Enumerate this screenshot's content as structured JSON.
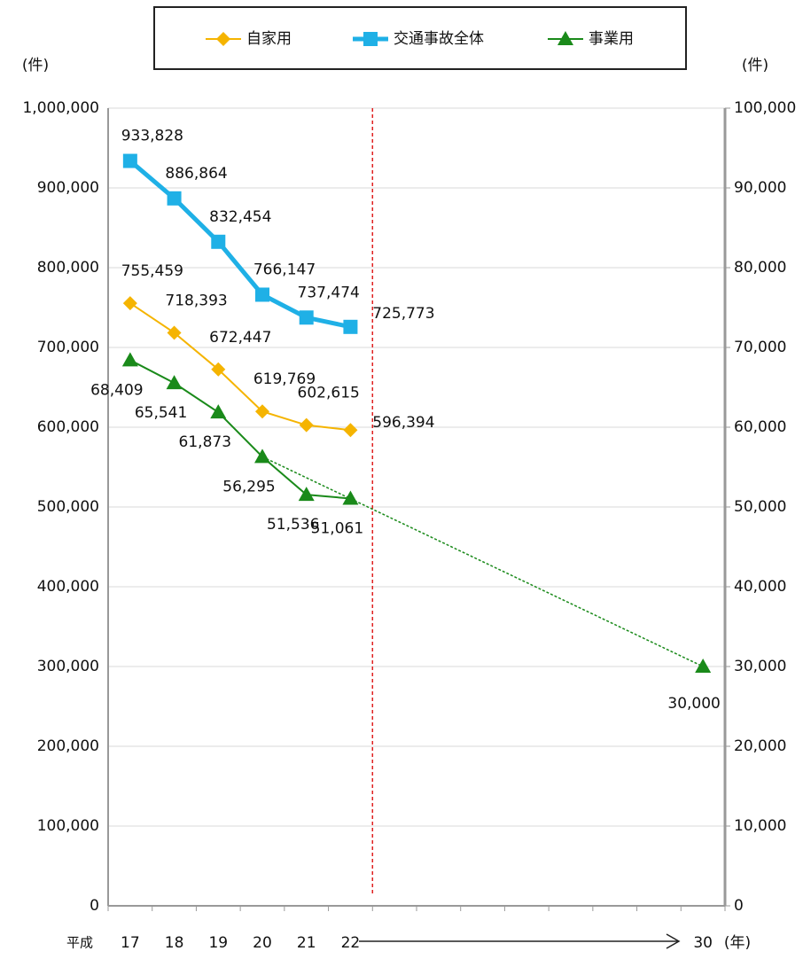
{
  "chart_data": {
    "type": "line",
    "legend_labels_note_free": null,
    "categories": [
      "17",
      "18",
      "19",
      "20",
      "21",
      "22",
      null,
      null,
      null,
      null,
      null,
      null,
      null,
      "30"
    ],
    "x_prefix": "平成",
    "x_unit": "(年)",
    "y_unit": "(件)",
    "y2_unit": "(件)",
    "ylim": [
      0,
      1000000
    ],
    "yticks": [
      0,
      {
        "value": 100000,
        "label": "100,000"
      },
      {
        "value": 200000,
        "label": "200,000"
      },
      {
        "value": 300000,
        "label": "300,000"
      },
      {
        "value": 400000,
        "label": "400,000"
      },
      {
        "value": 500000,
        "label": "500,000"
      },
      {
        "value": 600000,
        "label": "600,000"
      },
      {
        "value": 700000,
        "label": "700,000"
      },
      {
        "value": 800000,
        "label": "800,000"
      },
      {
        "value": 900000,
        "label": "900,000"
      },
      {
        "value": 1000000,
        "label": "1,000,000"
      }
    ],
    "y2lim": [
      0,
      100000
    ],
    "y2ticks": [
      0,
      {
        "value": 10000,
        "label": "10,000"
      },
      {
        "value": 20000,
        "label": "20,000"
      },
      {
        "value": 30000,
        "label": "30,000"
      },
      {
        "value": 40000,
        "label": "40,000"
      },
      {
        "value": 50000,
        "label": "50,000"
      },
      {
        "value": 60000,
        "label": "60,000"
      },
      {
        "value": 70000,
        "label": "70,000"
      },
      {
        "value": 80000,
        "label": "80,000"
      },
      {
        "value": 90000,
        "label": "90,000"
      },
      {
        "value": 100000,
        "label": "100,000"
      }
    ],
    "grid": true,
    "legend": "top",
    "series": [
      {
        "name": "自家用",
        "color": "#f5b400",
        "marker": "diamond",
        "values": [
          755459,
          718393,
          672447,
          619769,
          602615,
          596394,
          null,
          null,
          null,
          null,
          null,
          null,
          null,
          null
        ],
        "value_labels": [
          "755,459",
          "718,393",
          "672,447",
          "619,769",
          "602,615",
          "596,394",
          null,
          null,
          null,
          null,
          null,
          null,
          null,
          null
        ]
      },
      {
        "name": "交通事故全体",
        "color": "#1fb0e6",
        "marker": "square",
        "values": [
          933828,
          886864,
          832454,
          766147,
          737474,
          725773,
          null,
          null,
          null,
          null,
          null,
          null,
          null,
          null
        ],
        "value_labels": [
          "933,828",
          "886,864",
          "832,454",
          "766,147",
          "737,474",
          "725,773",
          null,
          null,
          null,
          null,
          null,
          null,
          null,
          null
        ]
      },
      {
        "name": "事業用",
        "color": "#1a8a1a",
        "marker": "triangle",
        "axis": "y2",
        "values": [
          68409,
          65541,
          61873,
          56295,
          51536,
          51061,
          null,
          null,
          null,
          null,
          null,
          null,
          null,
          30000
        ],
        "value_labels": [
          "68,409",
          "65,541",
          "61,873",
          "56,295",
          "51,536",
          "51,061",
          null,
          null,
          null,
          null,
          null,
          null,
          null,
          "30,000"
        ]
      }
    ],
    "trend_line": {
      "series": 2,
      "from": 3,
      "to": 13,
      "style": "dashed"
    }
  }
}
